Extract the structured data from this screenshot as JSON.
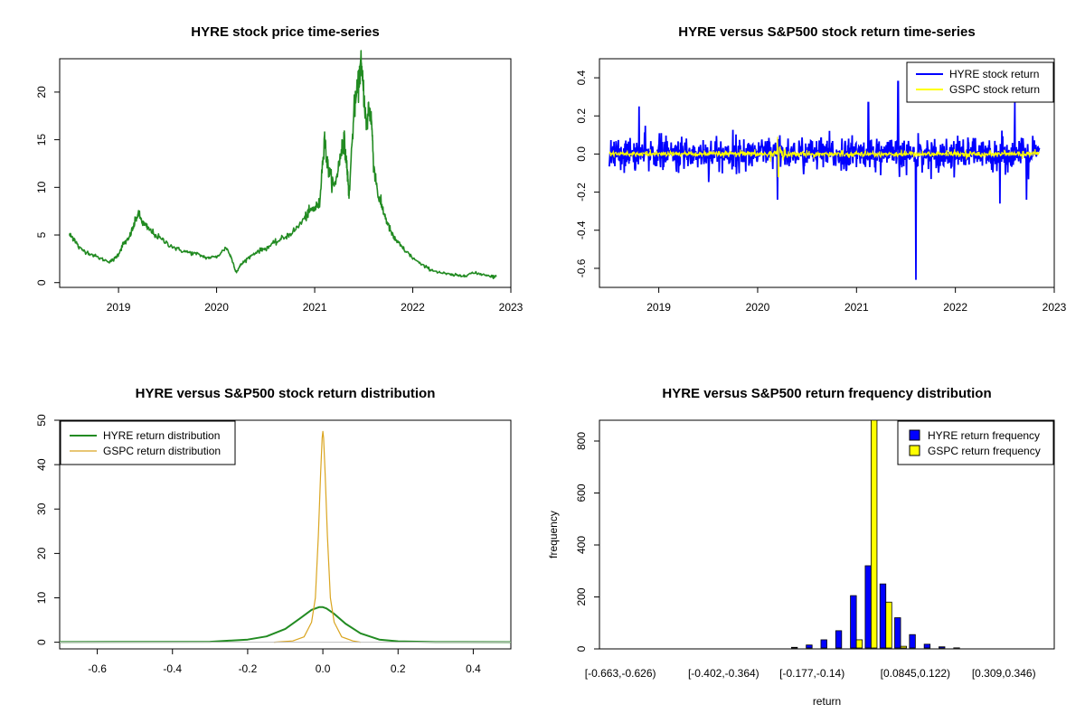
{
  "chart_data": [
    {
      "id": "price",
      "type": "line",
      "title": "HYRE stock price time-series",
      "xlabel": "",
      "ylabel": "",
      "xlim": [
        2018.4,
        2023.0
      ],
      "ylim": [
        -0.5,
        23.5
      ],
      "x_ticks": [
        2019,
        2020,
        2021,
        2022,
        2023
      ],
      "x_tick_labels": [
        "2019",
        "2020",
        "2021",
        "2022",
        "2023"
      ],
      "y_ticks": [
        0,
        5,
        10,
        15,
        20
      ],
      "y_tick_labels": [
        "0",
        "5",
        "10",
        "15",
        "20"
      ],
      "grid": false,
      "series": [
        {
          "color": "#228b22",
          "x": [
            2018.5,
            2018.55,
            2018.6,
            2018.7,
            2018.8,
            2018.9,
            2018.95,
            2019.0,
            2019.05,
            2019.1,
            2019.15,
            2019.2,
            2019.25,
            2019.3,
            2019.4,
            2019.5,
            2019.6,
            2019.7,
            2019.8,
            2019.9,
            2020.0,
            2020.1,
            2020.15,
            2020.2,
            2020.25,
            2020.3,
            2020.4,
            2020.5,
            2020.6,
            2020.7,
            2020.8,
            2020.9,
            2020.95,
            2021.0,
            2021.05,
            2021.1,
            2021.12,
            2021.15,
            2021.2,
            2021.25,
            2021.28,
            2021.3,
            2021.33,
            2021.35,
            2021.4,
            2021.45,
            2021.47,
            2021.5,
            2021.53,
            2021.55,
            2021.58,
            2021.6,
            2021.65,
            2021.7,
            2021.75,
            2021.8,
            2021.85,
            2021.9,
            2022.0,
            2022.1,
            2022.2,
            2022.3,
            2022.4,
            2022.5,
            2022.6,
            2022.7,
            2022.8,
            2022.85
          ],
          "values": [
            5.0,
            4.6,
            3.6,
            3.1,
            2.6,
            2.2,
            2.4,
            3.0,
            4.1,
            4.5,
            5.8,
            7.3,
            6.2,
            5.7,
            4.8,
            4.1,
            3.5,
            3.2,
            3.0,
            2.6,
            2.7,
            3.7,
            2.6,
            1.1,
            1.9,
            2.4,
            3.2,
            3.6,
            4.2,
            4.8,
            5.5,
            6.8,
            7.5,
            7.8,
            8.3,
            15.5,
            13.0,
            11.5,
            10.0,
            12.5,
            14.5,
            15.0,
            12.0,
            9.0,
            18.0,
            21.0,
            23.0,
            20.0,
            16.0,
            18.5,
            17.0,
            12.5,
            9.0,
            7.5,
            6.0,
            4.8,
            4.2,
            3.6,
            2.6,
            1.8,
            1.3,
            1.0,
            0.8,
            0.7,
            1.0,
            0.9,
            0.7,
            0.6
          ]
        }
      ]
    },
    {
      "id": "returns",
      "type": "line",
      "title": "HYRE versus S&P500 stock return time-series",
      "xlabel": "",
      "ylabel": "",
      "xlim": [
        2018.4,
        2023.0
      ],
      "ylim": [
        -0.7,
        0.5
      ],
      "x_ticks": [
        2019,
        2020,
        2021,
        2022,
        2023
      ],
      "x_tick_labels": [
        "2019",
        "2020",
        "2021",
        "2022",
        "2023"
      ],
      "y_ticks": [
        -0.6,
        -0.4,
        -0.2,
        0.0,
        0.2,
        0.4
      ],
      "y_tick_labels": [
        "-0.6",
        "-0.4",
        "-0.2",
        "0.0",
        "0.2",
        "0.4"
      ],
      "grid": false,
      "x_start": 2018.5,
      "x_end": 2022.85,
      "legend_position": "top-right",
      "series": [
        {
          "name": "HYRE stock return",
          "color": "#0000ff",
          "typical_range": [
            -0.12,
            0.1
          ],
          "extremes": [
            {
              "x": 2021.6,
              "y": -0.66
            },
            {
              "x": 2021.12,
              "y": 0.27
            },
            {
              "x": 2021.42,
              "y": 0.38
            },
            {
              "x": 2022.6,
              "y": 0.27
            },
            {
              "x": 2018.8,
              "y": 0.25
            },
            {
              "x": 2020.2,
              "y": -0.24
            },
            {
              "x": 2022.45,
              "y": -0.26
            },
            {
              "x": 2022.72,
              "y": -0.24
            }
          ]
        },
        {
          "name": "GSPC stock return",
          "color": "#ffff00",
          "typical_range": [
            -0.02,
            0.02
          ],
          "extremes": [
            {
              "x": 2020.2,
              "y": 0.09
            },
            {
              "x": 2020.21,
              "y": -0.12
            }
          ]
        }
      ]
    },
    {
      "id": "density",
      "type": "line",
      "title": "HYRE versus S&P500 stock return distribution",
      "xlabel": "",
      "ylabel": "",
      "xlim": [
        -0.7,
        0.5
      ],
      "ylim": [
        -1.5,
        50
      ],
      "x_ticks": [
        -0.6,
        -0.4,
        -0.2,
        0.0,
        0.2,
        0.4
      ],
      "x_tick_labels": [
        "-0.6",
        "-0.4",
        "-0.2",
        "0.0",
        "0.2",
        "0.4"
      ],
      "y_ticks": [
        0,
        10,
        20,
        30,
        40,
        50
      ],
      "y_tick_labels": [
        "0",
        "10",
        "20",
        "30",
        "40",
        "50"
      ],
      "grid": false,
      "legend_position": "top-left",
      "series": [
        {
          "name": "HYRE return distribution",
          "color": "#228b22",
          "x": [
            -0.7,
            -0.3,
            -0.2,
            -0.15,
            -0.1,
            -0.06,
            -0.03,
            -0.01,
            0.0,
            0.01,
            0.03,
            0.06,
            0.1,
            0.15,
            0.2,
            0.3,
            0.5
          ],
          "values": [
            0.05,
            0.1,
            0.6,
            1.3,
            3.0,
            5.4,
            7.3,
            7.9,
            7.9,
            7.6,
            6.4,
            4.2,
            2.0,
            0.6,
            0.2,
            0.05,
            0.02
          ]
        },
        {
          "name": "GSPC return distribution",
          "color": "#daa520",
          "x": [
            -0.13,
            -0.08,
            -0.05,
            -0.03,
            -0.02,
            -0.012,
            -0.006,
            -0.002,
            0.0,
            0.002,
            0.006,
            0.012,
            0.02,
            0.03,
            0.05,
            0.08,
            0.1
          ],
          "values": [
            0.0,
            0.3,
            1.2,
            4.5,
            10.0,
            24.0,
            38.0,
            46.0,
            47.5,
            46.0,
            38.0,
            24.0,
            10.0,
            4.5,
            1.2,
            0.3,
            0.0
          ]
        }
      ]
    },
    {
      "id": "histogram",
      "type": "bar",
      "title": "HYRE versus S&P500 return frequency distribution",
      "xlabel": "return",
      "ylabel": "frequency",
      "ylim": [
        0,
        880
      ],
      "y_ticks": [
        0,
        200,
        400,
        600,
        800
      ],
      "y_tick_labels": [
        "0",
        "200",
        "400",
        "600",
        "800"
      ],
      "grid": false,
      "legend_position": "top-right",
      "categories": [
        "[-0.663,-0.626)",
        "[-0.626,-0.589)",
        "[-0.589,-0.551)",
        "[-0.551,-0.514)",
        "[-0.514,-0.477)",
        "[-0.477,-0.439)",
        "[-0.439,-0.402)",
        "[-0.402,-0.364)",
        "[-0.364,-0.327)",
        "[-0.327,-0.289)",
        "[-0.289,-0.252)",
        "[-0.252,-0.215)",
        "[-0.215,-0.177)",
        "[-0.177,-0.14)",
        "[-0.14,-0.103)",
        "[-0.103,-0.0653)",
        "[-0.0653,-0.0279)",
        "[-0.0279,0.00955)",
        "[0.00955,0.047)",
        "[0.047,0.0845)",
        "[0.0845,0.122)",
        "[0.122,0.159)",
        "[0.159,0.197)",
        "[0.197,0.234)",
        "[0.234,0.271)",
        "[0.271,0.309)",
        "[0.309,0.346)",
        "[0.346,0.383)",
        "[0.383,0.421)"
      ],
      "shown_category_labels": [
        "[-0.663,-0.626)",
        "[-0.402,-0.364)",
        "[-0.177,-0.14)",
        "[0.0845,0.122)",
        "[0.309,0.346)"
      ],
      "series": [
        {
          "name": "HYRE return frequency",
          "color": "#0000ff",
          "values": [
            1,
            0,
            0,
            0,
            0,
            0,
            0,
            0,
            0,
            0,
            1,
            3,
            6,
            15,
            35,
            70,
            205,
            320,
            250,
            120,
            55,
            18,
            8,
            4,
            3,
            2,
            1,
            1,
            1
          ]
        },
        {
          "name": "GSPC return frequency",
          "color": "#ffff00",
          "values": [
            0,
            0,
            0,
            0,
            0,
            0,
            0,
            0,
            0,
            0,
            0,
            0,
            0,
            0,
            0,
            0,
            35,
            880,
            180,
            10,
            0,
            0,
            0,
            0,
            0,
            0,
            0,
            0,
            0
          ]
        }
      ]
    }
  ]
}
